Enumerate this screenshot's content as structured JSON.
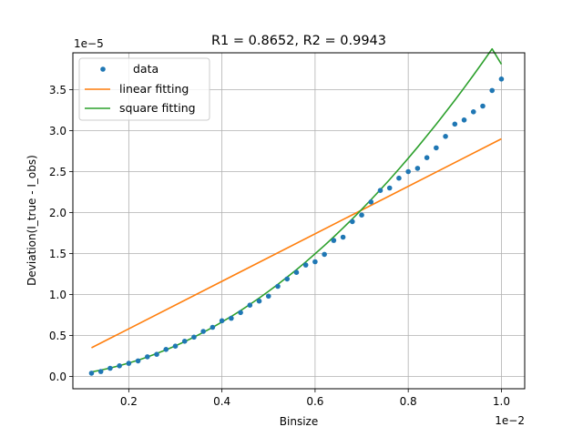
{
  "chart_data": {
    "type": "line",
    "title": "R1 = 0.8652, R2 = 0.9943",
    "xlabel": "Binsize",
    "ylabel": "Deviation(I_true - I_obs)",
    "x_offset_label": "1e−2",
    "y_offset_label": "1e−5",
    "xlim": [
      0.0008,
      0.0105
    ],
    "ylim": [
      -1.5e-06,
      3.95e-05
    ],
    "x_ticks": [
      0.002,
      0.004,
      0.006,
      0.008,
      0.01
    ],
    "x_tick_labels": [
      "0.2",
      "0.4",
      "0.6",
      "0.8",
      "1.0"
    ],
    "y_ticks": [
      0,
      5e-06,
      1e-05,
      1.5e-05,
      2e-05,
      2.5e-05,
      3e-05,
      3.5e-05
    ],
    "y_tick_labels": [
      "0.0",
      "0.5",
      "1.0",
      "1.5",
      "2.0",
      "2.5",
      "3.0",
      "3.5"
    ],
    "grid": true,
    "legend_position": "top-left",
    "colors": {
      "data": "#1f77b4",
      "linear": "#ff7f0e",
      "square": "#2ca02c",
      "grid": "#b0b0b0"
    },
    "series": [
      {
        "name": "data",
        "style": "markers",
        "x": [
          0.0012,
          0.0014,
          0.0016,
          0.0018,
          0.002,
          0.0022,
          0.0024,
          0.0026,
          0.0028,
          0.003,
          0.0032,
          0.0034,
          0.0036,
          0.0038,
          0.004,
          0.0042,
          0.0044,
          0.0046,
          0.0048,
          0.005,
          0.0052,
          0.0054,
          0.0056,
          0.0058,
          0.006,
          0.0062,
          0.0064,
          0.0066,
          0.0068,
          0.007,
          0.0072,
          0.0074,
          0.0076,
          0.0078,
          0.008,
          0.0082,
          0.0084,
          0.0086,
          0.0088,
          0.009,
          0.0092,
          0.0094,
          0.0096,
          0.0098,
          0.01
        ],
        "y": [
          4e-07,
          6e-07,
          1e-06,
          1.3e-06,
          1.6e-06,
          1.9e-06,
          2.4e-06,
          2.7e-06,
          3.3e-06,
          3.7e-06,
          4.3e-06,
          4.8e-06,
          5.5e-06,
          6e-06,
          6.8e-06,
          7.1e-06,
          7.8e-06,
          8.7e-06,
          9.2e-06,
          9.8e-06,
          1.1e-05,
          1.19e-05,
          1.27e-05,
          1.36e-05,
          1.4e-05,
          1.49e-05,
          1.66e-05,
          1.7e-05,
          1.89e-05,
          1.97e-05,
          2.13e-05,
          2.27e-05,
          2.3e-05,
          2.42e-05,
          2.5e-05,
          2.54e-05,
          2.67e-05,
          2.79e-05,
          2.93e-05,
          3.08e-05,
          3.13e-05,
          3.23e-05,
          3.3e-05,
          3.49e-05,
          3.63e-05
        ]
      },
      {
        "name": "linear fitting",
        "style": "line",
        "x": [
          0.0012,
          0.01
        ],
        "y": [
          3.5e-06,
          2.9e-05
        ]
      },
      {
        "name": "square fitting",
        "style": "line",
        "x": [
          0.0012,
          0.0014,
          0.0016,
          0.0018,
          0.002,
          0.0022,
          0.0024,
          0.0026,
          0.0028,
          0.003,
          0.0032,
          0.0034,
          0.0036,
          0.0038,
          0.004,
          0.0042,
          0.0044,
          0.0046,
          0.0048,
          0.005,
          0.0052,
          0.0054,
          0.0056,
          0.0058,
          0.006,
          0.0062,
          0.0064,
          0.0066,
          0.0068,
          0.007,
          0.0072,
          0.0074,
          0.0076,
          0.0078,
          0.008,
          0.0082,
          0.0084,
          0.0086,
          0.0088,
          0.009,
          0.0092,
          0.0094,
          0.0096,
          0.0098,
          0.01
        ],
        "y": [
          5.5e-07,
          7.8e-07,
          1.03e-06,
          1.32e-06,
          1.64e-06,
          1.99e-06,
          2.38e-06,
          2.8e-06,
          3.25e-06,
          3.73e-06,
          4.25e-06,
          4.8e-06,
          5.38e-06,
          5.99e-06,
          6.64e-06,
          7.32e-06,
          8.04e-06,
          8.79e-06,
          9.57e-06,
          1.039e-05,
          1.124e-05,
          1.212e-05,
          1.303e-05,
          1.398e-05,
          1.497e-05,
          1.598e-05,
          1.703e-05,
          1.812e-05,
          1.923e-05,
          2.038e-05,
          2.157e-05,
          2.278e-05,
          2.403e-05,
          2.532e-05,
          2.663e-05,
          2.798e-05,
          2.937e-05,
          3.078e-05,
          3.223e-05,
          3.371e-05,
          3.523e-05,
          3.678e-05,
          3.836e-05,
          3.998e-05,
          3.81e-05
        ]
      }
    ]
  }
}
